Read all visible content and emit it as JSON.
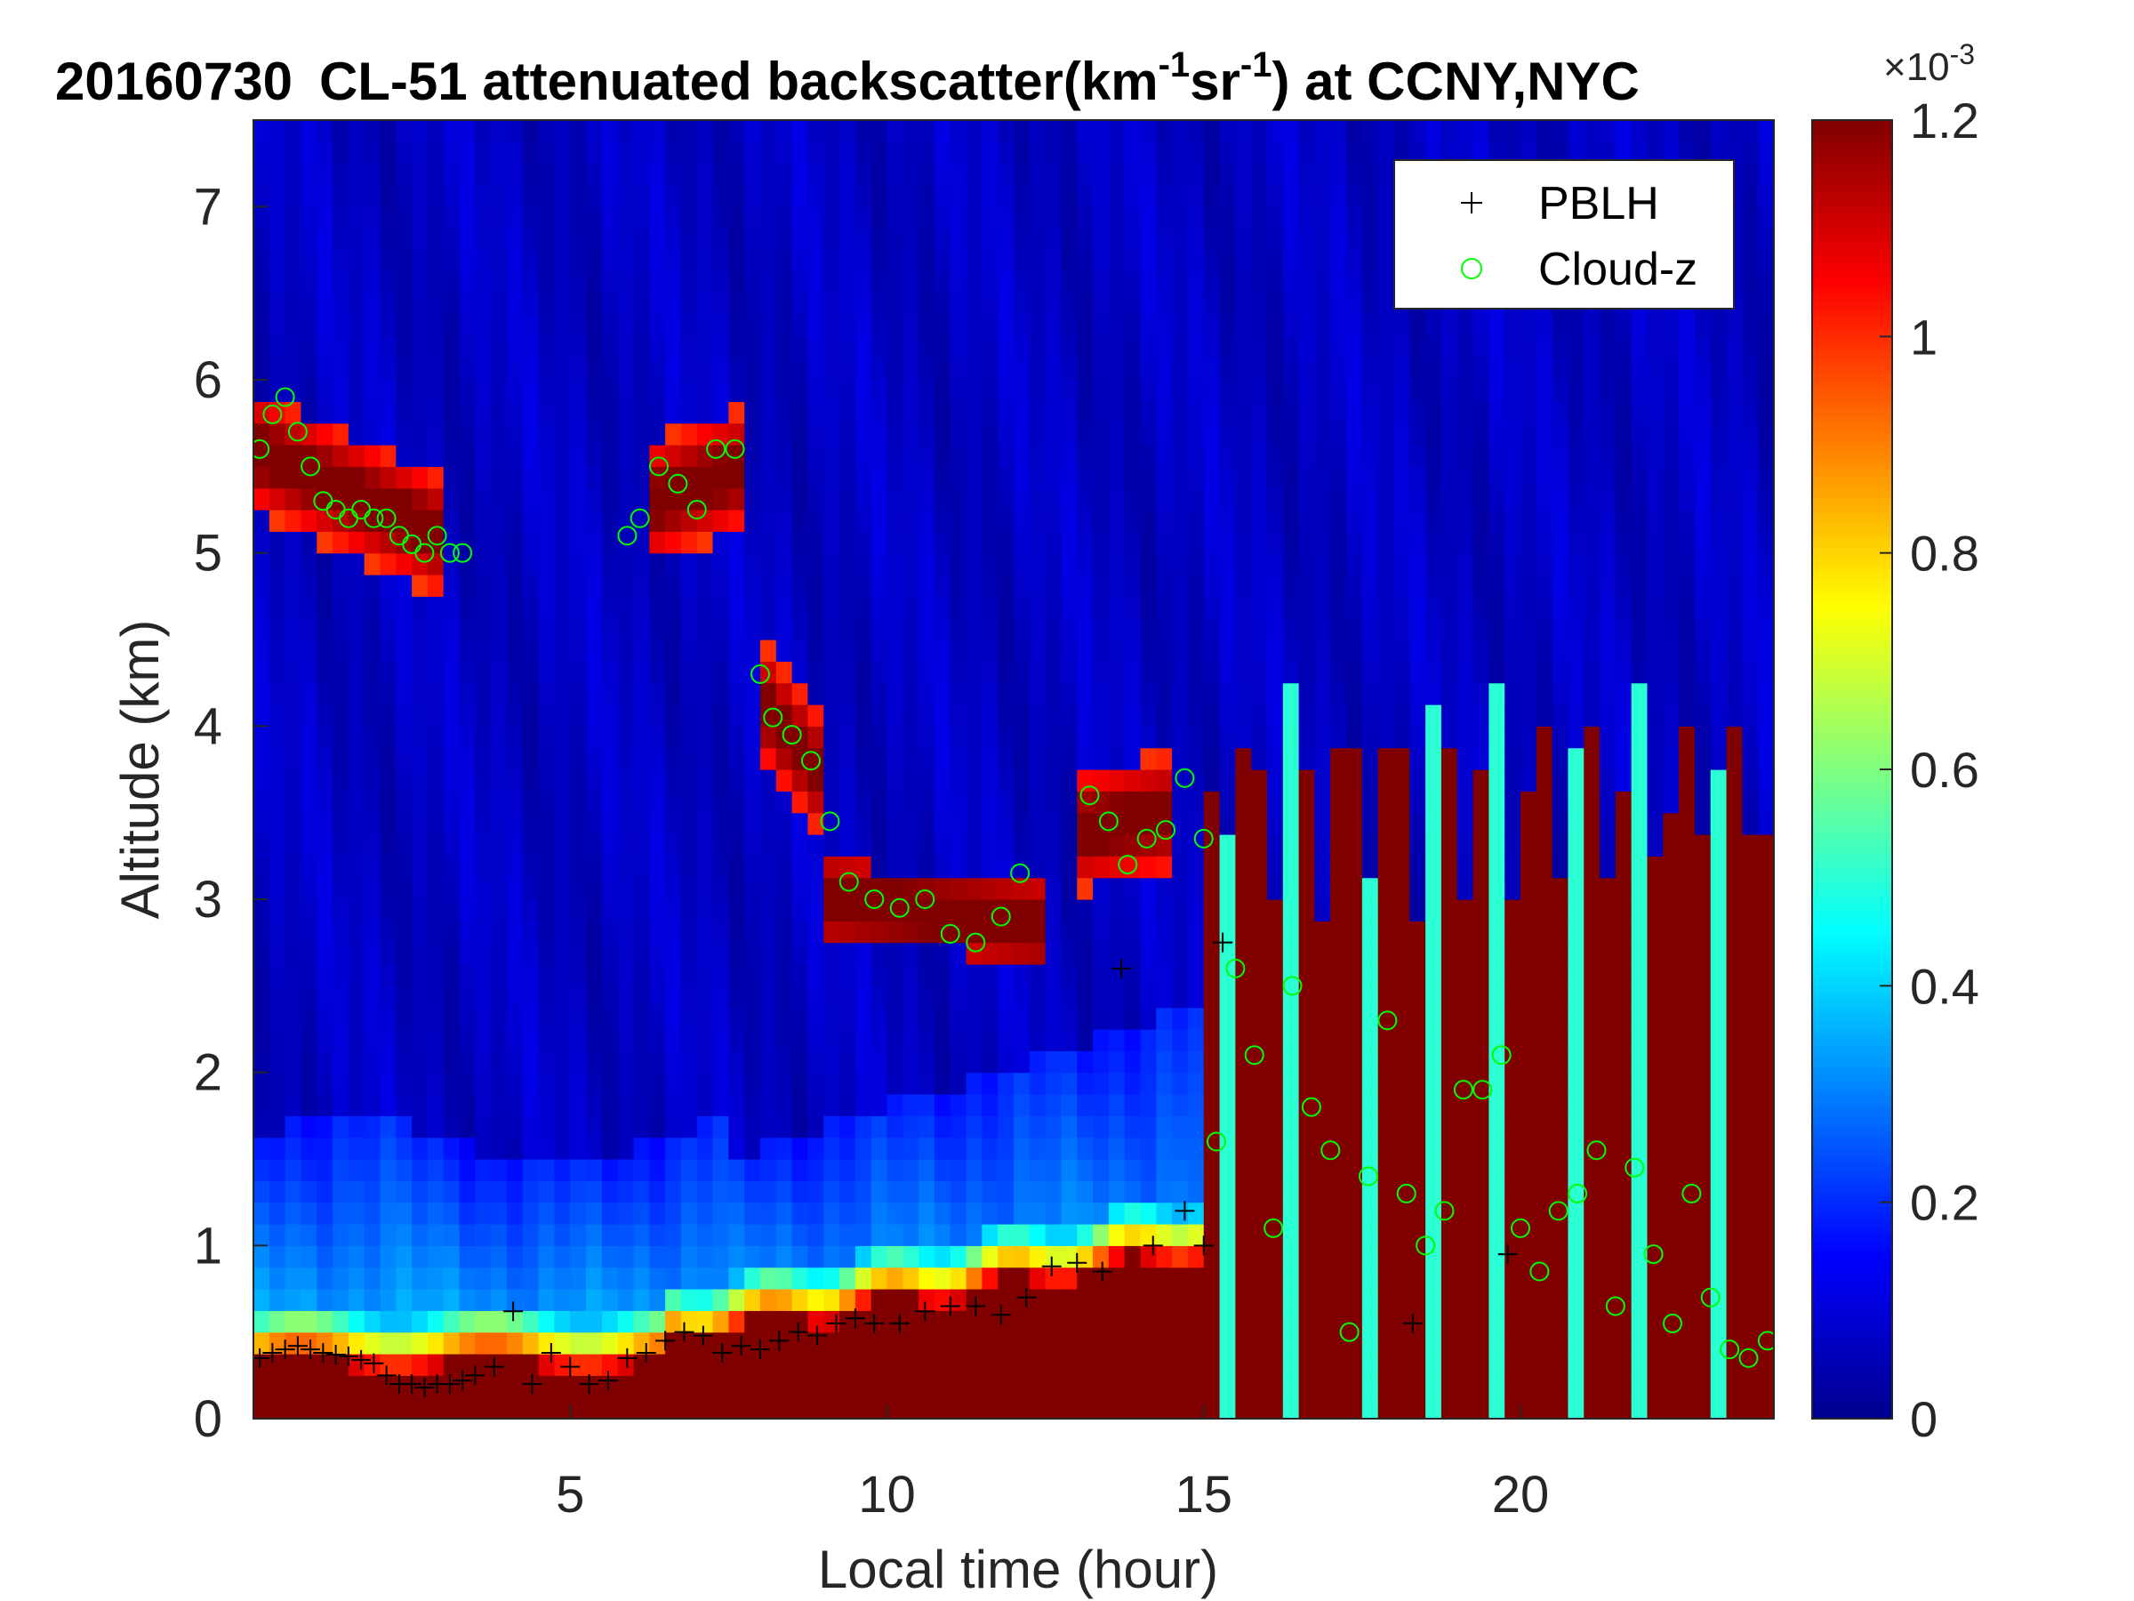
{
  "chart_data": {
    "type": "heatmap",
    "title": {
      "date": "20160730",
      "prefix": "CL-51 attenuated backscatter(km",
      "exp1": "-1",
      "mid": "sr",
      "exp2": "-1",
      "suffix": ") at CCNY,NYC"
    },
    "xlabel": "Local time (hour)",
    "ylabel": "Altitude (km)",
    "xlim": [
      0,
      24
    ],
    "ylim": [
      0,
      7.5
    ],
    "xticks": [
      5,
      10,
      15,
      20
    ],
    "yticks": [
      0,
      1,
      2,
      3,
      4,
      5,
      6,
      7
    ],
    "colorbar": {
      "colormap": "jet",
      "clim": [
        0,
        1.2
      ],
      "ticks": [
        0,
        0.2,
        0.4,
        0.6,
        0.8,
        1,
        1.2
      ],
      "tick_labels": [
        "0",
        "0.2",
        "0.4",
        "0.6",
        "0.8",
        "1",
        "1.2"
      ],
      "multiplier_base": "×10",
      "multiplier_exp": "-3"
    },
    "legend": {
      "placement": "top-right",
      "entries": [
        {
          "name": "PBLH",
          "marker": "+",
          "color": "#000000"
        },
        {
          "name": "Cloud-z",
          "marker": "o",
          "color": "#00ff00"
        }
      ]
    },
    "pblh": {
      "x": [
        0.1,
        0.3,
        0.5,
        0.7,
        0.9,
        1.1,
        1.3,
        1.5,
        1.7,
        1.9,
        2.1,
        2.3,
        2.5,
        2.7,
        2.9,
        3.1,
        3.3,
        3.5,
        3.8,
        4.1,
        4.4,
        4.7,
        5.0,
        5.3,
        5.6,
        5.9,
        6.2,
        6.5,
        6.8,
        7.1,
        7.4,
        7.7,
        8.0,
        8.3,
        8.6,
        8.9,
        9.2,
        9.5,
        9.8,
        10.2,
        10.6,
        11.0,
        11.4,
        11.8,
        12.2,
        12.6,
        13.0,
        13.4,
        13.7,
        14.2,
        14.7,
        15.0,
        15.3,
        18.3,
        19.8
      ],
      "y": [
        0.35,
        0.38,
        0.4,
        0.42,
        0.4,
        0.38,
        0.37,
        0.36,
        0.34,
        0.32,
        0.25,
        0.2,
        0.2,
        0.18,
        0.2,
        0.2,
        0.22,
        0.25,
        0.3,
        0.62,
        0.2,
        0.38,
        0.3,
        0.2,
        0.22,
        0.35,
        0.38,
        0.45,
        0.5,
        0.48,
        0.38,
        0.42,
        0.4,
        0.45,
        0.5,
        0.48,
        0.55,
        0.58,
        0.55,
        0.55,
        0.62,
        0.65,
        0.65,
        0.6,
        0.7,
        0.88,
        0.9,
        0.85,
        2.6,
        1.0,
        1.2,
        1.0,
        2.75,
        0.55,
        0.95
      ]
    },
    "cloud_z": {
      "x": [
        0.1,
        0.3,
        0.5,
        0.7,
        0.9,
        1.1,
        1.3,
        1.5,
        1.7,
        1.9,
        2.1,
        2.3,
        2.5,
        2.7,
        2.9,
        3.1,
        3.3,
        5.9,
        6.1,
        6.4,
        6.7,
        7.0,
        7.3,
        7.6,
        8.0,
        8.2,
        8.5,
        8.8,
        9.1,
        9.4,
        9.8,
        10.2,
        10.6,
        11.0,
        11.4,
        11.8,
        12.1,
        13.2,
        13.5,
        13.8,
        14.1,
        14.4,
        14.7,
        15.0,
        15.2,
        15.5,
        15.8,
        16.1,
        16.4,
        16.7,
        17.0,
        17.3,
        17.6,
        17.9,
        18.2,
        18.5,
        18.8,
        19.1,
        19.4,
        19.7,
        20.0,
        20.3,
        20.6,
        20.9,
        21.2,
        21.5,
        21.8,
        22.1,
        22.4,
        22.7,
        23.0,
        23.3,
        23.6,
        23.9
      ],
      "y": [
        5.6,
        5.8,
        5.9,
        5.7,
        5.5,
        5.3,
        5.25,
        5.2,
        5.25,
        5.2,
        5.2,
        5.1,
        5.05,
        5.0,
        5.1,
        5.0,
        5.0,
        5.1,
        5.2,
        5.5,
        5.4,
        5.25,
        5.6,
        5.6,
        4.3,
        4.05,
        3.95,
        3.8,
        3.45,
        3.1,
        3.0,
        2.95,
        3.0,
        2.8,
        2.75,
        2.9,
        3.15,
        3.6,
        3.45,
        3.2,
        3.35,
        3.4,
        3.7,
        3.35,
        1.6,
        2.6,
        2.1,
        1.1,
        2.5,
        1.8,
        1.55,
        0.5,
        1.4,
        2.3,
        1.3,
        1.0,
        1.2,
        1.9,
        1.9,
        2.1,
        1.1,
        0.85,
        1.2,
        1.3,
        1.55,
        0.65,
        1.45,
        0.95,
        0.55,
        1.3,
        0.7,
        0.4,
        0.35,
        0.45
      ]
    }
  }
}
